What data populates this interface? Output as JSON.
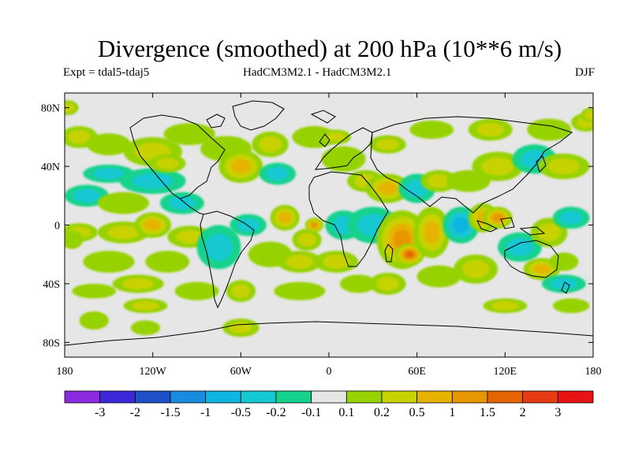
{
  "title": "Divergence (smoothed) at 200 hPa (10**6 m/s)",
  "experiment": "Expt = tdal5-tdaj5",
  "model": "HadCM3M2.1 - HadCM3M2.1",
  "season": "DJF",
  "axes": {
    "lat_ticks": [
      {
        "value": 80,
        "label": "80N"
      },
      {
        "value": 40,
        "label": "40N"
      },
      {
        "value": 0,
        "label": "0"
      },
      {
        "value": -40,
        "label": "40S"
      },
      {
        "value": -80,
        "label": "80S"
      }
    ],
    "lon_ticks": [
      {
        "value": -180,
        "label": "180"
      },
      {
        "value": -120,
        "label": "120W"
      },
      {
        "value": -60,
        "label": "60W"
      },
      {
        "value": 0,
        "label": "0"
      },
      {
        "value": 60,
        "label": "60E"
      },
      {
        "value": 120,
        "label": "120E"
      },
      {
        "value": 180,
        "label": "180"
      }
    ],
    "lon_range": [
      -180,
      180
    ],
    "lat_range": [
      -90,
      90
    ]
  },
  "colorbar": {
    "colors": [
      "#8a2be2",
      "#3c28d8",
      "#1e50c8",
      "#1a8ce0",
      "#10b4e0",
      "#14c8d2",
      "#14d28c",
      "#e6e6e6",
      "#96d200",
      "#c8d200",
      "#e6b400",
      "#e69600",
      "#e66400",
      "#e63c14",
      "#e61414"
    ],
    "labels": [
      "-3",
      "-2",
      "-1.5",
      "-1",
      "-0.5",
      "-0.2",
      "-0.1",
      "0.1",
      "0.2",
      "0.5",
      "1",
      "1.5",
      "2",
      "3"
    ]
  },
  "field": {
    "background_color": "#e6e6e6",
    "blobs": [
      {
        "lon": -170,
        "lat": 60,
        "rx": 10,
        "ry": 6,
        "level": 1
      },
      {
        "lon": -150,
        "lat": 55,
        "rx": 12,
        "ry": 6,
        "level": 0
      },
      {
        "lon": -120,
        "lat": 50,
        "rx": 16,
        "ry": 8,
        "level": 1
      },
      {
        "lon": -95,
        "lat": 62,
        "rx": 14,
        "ry": 6,
        "level": 0
      },
      {
        "lon": -70,
        "lat": 52,
        "rx": 14,
        "ry": 7,
        "level": 0
      },
      {
        "lon": -60,
        "lat": 40,
        "rx": 12,
        "ry": 9,
        "level": 2
      },
      {
        "lon": -40,
        "lat": 55,
        "rx": 10,
        "ry": 7,
        "level": 1
      },
      {
        "lon": -35,
        "lat": 35,
        "rx": 10,
        "ry": 6,
        "level": -1
      },
      {
        "lon": -10,
        "lat": 60,
        "rx": 12,
        "ry": 6,
        "level": 0
      },
      {
        "lon": -150,
        "lat": 35,
        "rx": 14,
        "ry": 5,
        "level": -1
      },
      {
        "lon": -120,
        "lat": 30,
        "rx": 18,
        "ry": 7,
        "level": -1
      },
      {
        "lon": -110,
        "lat": 42,
        "rx": 10,
        "ry": 5,
        "level": 1
      },
      {
        "lon": -165,
        "lat": 20,
        "rx": 12,
        "ry": 6,
        "level": -1
      },
      {
        "lon": -140,
        "lat": 15,
        "rx": 14,
        "ry": 6,
        "level": 0
      },
      {
        "lon": -100,
        "lat": 15,
        "rx": 12,
        "ry": 6,
        "level": -1
      },
      {
        "lon": -170,
        "lat": -5,
        "rx": 10,
        "ry": 5,
        "level": 1
      },
      {
        "lon": -140,
        "lat": -5,
        "rx": 14,
        "ry": 6,
        "level": 1
      },
      {
        "lon": -120,
        "lat": 0,
        "rx": 10,
        "ry": 7,
        "level": 2
      },
      {
        "lon": -95,
        "lat": -8,
        "rx": 12,
        "ry": 6,
        "level": 1
      },
      {
        "lon": -75,
        "lat": -15,
        "rx": 12,
        "ry": 12,
        "level": -1
      },
      {
        "lon": -55,
        "lat": 0,
        "rx": 10,
        "ry": 6,
        "level": -1
      },
      {
        "lon": -30,
        "lat": 5,
        "rx": 8,
        "ry": 7,
        "level": 2
      },
      {
        "lon": -15,
        "lat": -10,
        "rx": 8,
        "ry": 6,
        "level": 1
      },
      {
        "lon": -10,
        "lat": 0,
        "rx": 5,
        "ry": 4,
        "level": 3
      },
      {
        "lon": 10,
        "lat": 0,
        "rx": 10,
        "ry": 8,
        "level": -1
      },
      {
        "lon": -40,
        "lat": -20,
        "rx": 12,
        "ry": 7,
        "level": 0
      },
      {
        "lon": -20,
        "lat": -25,
        "rx": 12,
        "ry": 6,
        "level": 1
      },
      {
        "lon": 5,
        "lat": -25,
        "rx": 12,
        "ry": 6,
        "level": 1
      },
      {
        "lon": -150,
        "lat": -25,
        "rx": 14,
        "ry": 6,
        "level": 0
      },
      {
        "lon": -110,
        "lat": -25,
        "rx": 12,
        "ry": 6,
        "level": 0
      },
      {
        "lon": -130,
        "lat": -40,
        "rx": 14,
        "ry": 5,
        "level": 1
      },
      {
        "lon": -160,
        "lat": -45,
        "rx": 12,
        "ry": 4,
        "level": 0
      },
      {
        "lon": -90,
        "lat": -45,
        "rx": 12,
        "ry": 5,
        "level": 0
      },
      {
        "lon": -60,
        "lat": -45,
        "rx": 8,
        "ry": 6,
        "level": 1
      },
      {
        "lon": -20,
        "lat": -45,
        "rx": 14,
        "ry": 5,
        "level": 0
      },
      {
        "lon": -125,
        "lat": -55,
        "rx": 12,
        "ry": 4,
        "level": 1
      },
      {
        "lon": -160,
        "lat": -65,
        "rx": 8,
        "ry": 5,
        "level": 0
      },
      {
        "lon": -60,
        "lat": -70,
        "rx": 10,
        "ry": 5,
        "level": 1
      },
      {
        "lon": -125,
        "lat": -70,
        "rx": 8,
        "ry": 4,
        "level": 0
      },
      {
        "lon": 10,
        "lat": 45,
        "rx": 12,
        "ry": 7,
        "level": 0
      },
      {
        "lon": 25,
        "lat": 30,
        "rx": 10,
        "ry": 6,
        "level": 1
      },
      {
        "lon": 40,
        "lat": 25,
        "rx": 12,
        "ry": 8,
        "level": 2
      },
      {
        "lon": 60,
        "lat": 25,
        "rx": 10,
        "ry": 8,
        "level": -1
      },
      {
        "lon": 75,
        "lat": 30,
        "rx": 10,
        "ry": 6,
        "level": 1
      },
      {
        "lon": 95,
        "lat": 30,
        "rx": 12,
        "ry": 6,
        "level": 0
      },
      {
        "lon": 115,
        "lat": 40,
        "rx": 14,
        "ry": 8,
        "level": 1
      },
      {
        "lon": 140,
        "lat": 45,
        "rx": 12,
        "ry": 8,
        "level": -1
      },
      {
        "lon": 160,
        "lat": 40,
        "rx": 14,
        "ry": 7,
        "level": 1
      },
      {
        "lon": 40,
        "lat": 55,
        "rx": 10,
        "ry": 5,
        "level": 1
      },
      {
        "lon": 70,
        "lat": 65,
        "rx": 12,
        "ry": 5,
        "level": 0
      },
      {
        "lon": 110,
        "lat": 65,
        "rx": 12,
        "ry": 6,
        "level": 1
      },
      {
        "lon": 150,
        "lat": 65,
        "rx": 12,
        "ry": 6,
        "level": 0
      },
      {
        "lon": 175,
        "lat": 70,
        "rx": 8,
        "ry": 5,
        "level": 1
      },
      {
        "lon": 30,
        "lat": 0,
        "rx": 14,
        "ry": 10,
        "level": -1
      },
      {
        "lon": 50,
        "lat": -10,
        "rx": 14,
        "ry": 16,
        "level": 3
      },
      {
        "lon": 55,
        "lat": -20,
        "rx": 8,
        "ry": 6,
        "level": 4
      },
      {
        "lon": 70,
        "lat": -5,
        "rx": 10,
        "ry": 14,
        "level": 2
      },
      {
        "lon": 90,
        "lat": 0,
        "rx": 10,
        "ry": 10,
        "level": -2
      },
      {
        "lon": 105,
        "lat": 5,
        "rx": 8,
        "ry": 8,
        "level": 2
      },
      {
        "lon": 115,
        "lat": 5,
        "rx": 8,
        "ry": 6,
        "level": 3
      },
      {
        "lon": 130,
        "lat": -15,
        "rx": 12,
        "ry": 8,
        "level": -1
      },
      {
        "lon": 150,
        "lat": -5,
        "rx": 10,
        "ry": 8,
        "level": 1
      },
      {
        "lon": 165,
        "lat": 5,
        "rx": 10,
        "ry": 6,
        "level": -1
      },
      {
        "lon": 145,
        "lat": -30,
        "rx": 10,
        "ry": 6,
        "level": 2
      },
      {
        "lon": 100,
        "lat": -30,
        "rx": 12,
        "ry": 8,
        "level": 1
      },
      {
        "lon": 75,
        "lat": -35,
        "rx": 12,
        "ry": 6,
        "level": 0
      },
      {
        "lon": 40,
        "lat": -40,
        "rx": 10,
        "ry": 6,
        "level": 1
      },
      {
        "lon": 20,
        "lat": -40,
        "rx": 10,
        "ry": 5,
        "level": 0
      },
      {
        "lon": 160,
        "lat": -40,
        "rx": 12,
        "ry": 5,
        "level": -1
      },
      {
        "lon": 165,
        "lat": -55,
        "rx": 10,
        "ry": 4,
        "level": 0
      },
      {
        "lon": 120,
        "lat": -55,
        "rx": 12,
        "ry": 4,
        "level": 1
      },
      {
        "lon": 160,
        "lat": -25,
        "rx": 8,
        "ry": 5,
        "level": 0
      },
      {
        "lon": 5,
        "lat": 60,
        "rx": 8,
        "ry": 4,
        "level": 1
      },
      {
        "lon": -175,
        "lat": -10,
        "rx": 6,
        "ry": 5,
        "level": 0
      },
      {
        "lon": 178,
        "lat": 75,
        "rx": 5,
        "ry": 4,
        "level": 1
      },
      {
        "lon": -178,
        "lat": 80,
        "rx": 6,
        "ry": 4,
        "level": 1
      }
    ]
  }
}
